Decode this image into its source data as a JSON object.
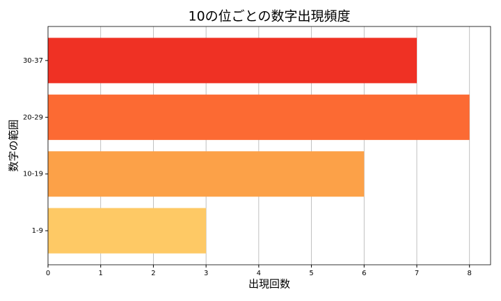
{
  "chart_data": {
    "type": "barh",
    "title": "10の位ごとの数字出現頻度",
    "x_label": "出現回数",
    "y_label": "数字の範囲",
    "categories": [
      "1-9",
      "10-19",
      "20-29",
      "30-37"
    ],
    "values": [
      3,
      6,
      8,
      7
    ],
    "colors": [
      "#fec965",
      "#fca148",
      "#fc6a33",
      "#ef3124"
    ],
    "xlim": [
      0,
      8.4
    ],
    "xticks": [
      0,
      1,
      2,
      3,
      4,
      5,
      6,
      7,
      8
    ],
    "grid": true
  }
}
